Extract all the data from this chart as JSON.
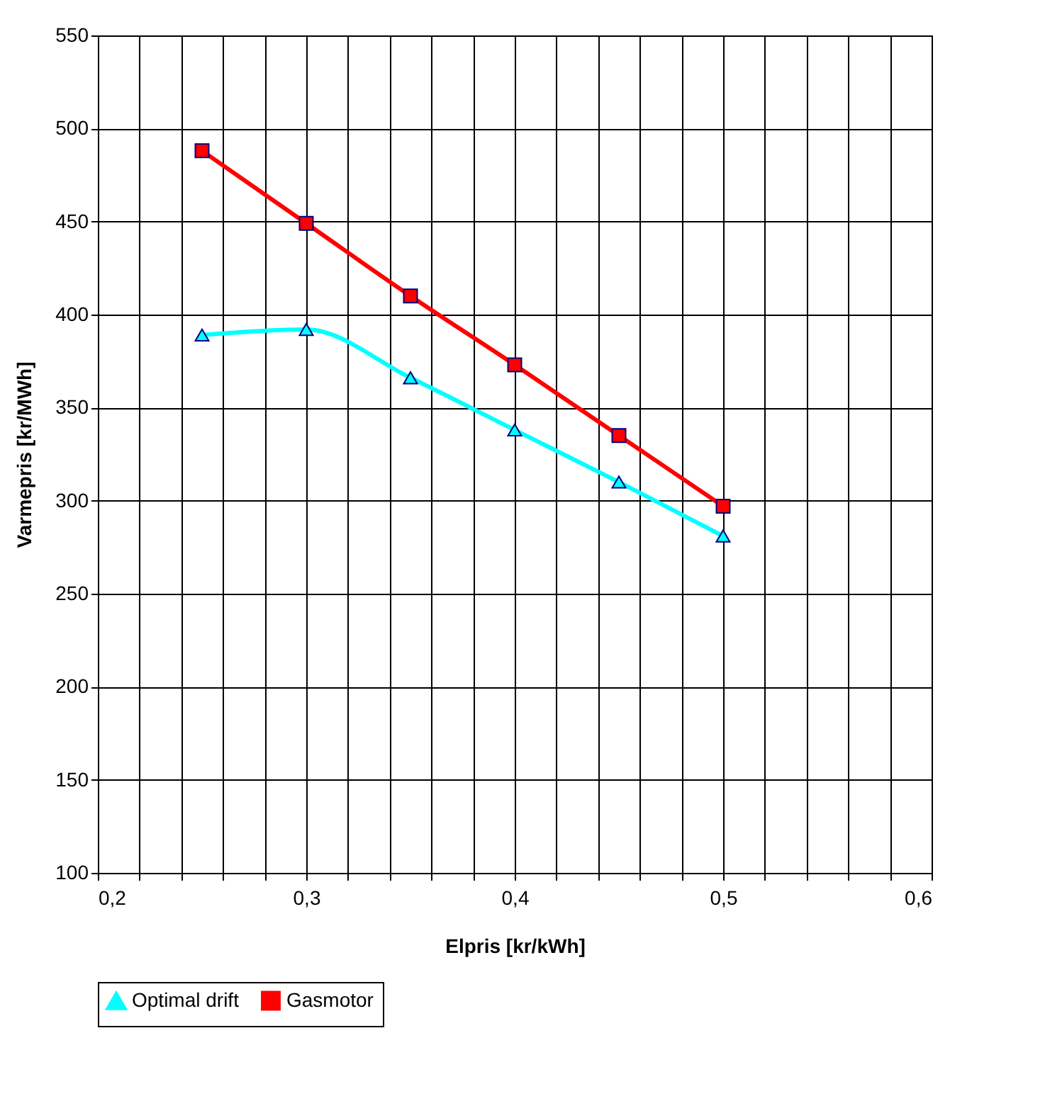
{
  "chart_data": {
    "type": "line",
    "xlabel": "Elpris [kr/kWh]",
    "ylabel": "Varmepris [kr/MWh]",
    "x": [
      0.25,
      0.3,
      0.35,
      0.4,
      0.45,
      0.5
    ],
    "series": [
      {
        "name": "Optimal drift",
        "color": "#00ffff",
        "values": [
          389,
          392,
          366,
          338,
          310,
          281
        ],
        "marker": "triangle"
      },
      {
        "name": "Gasmotor",
        "color": "#ff0000",
        "values": [
          488,
          449,
          410,
          373,
          335,
          297
        ],
        "marker": "square"
      }
    ],
    "xlim": [
      0.2,
      0.6
    ],
    "xticks": [
      {
        "value": 0.2,
        "label": "0,2"
      },
      {
        "value": 0.22,
        "label": null
      },
      {
        "value": 0.24,
        "label": null
      },
      {
        "value": 0.26,
        "label": null
      },
      {
        "value": 0.28,
        "label": null
      },
      {
        "value": 0.3,
        "label": "0,3"
      },
      {
        "value": 0.32,
        "label": null
      },
      {
        "value": 0.34,
        "label": null
      },
      {
        "value": 0.36,
        "label": null
      },
      {
        "value": 0.38,
        "label": null
      },
      {
        "value": 0.4,
        "label": "0,4"
      },
      {
        "value": 0.42,
        "label": null
      },
      {
        "value": 0.44,
        "label": null
      },
      {
        "value": 0.46,
        "label": null
      },
      {
        "value": 0.48,
        "label": null
      },
      {
        "value": 0.5,
        "label": "0,5"
      },
      {
        "value": 0.52,
        "label": null
      },
      {
        "value": 0.54,
        "label": null
      },
      {
        "value": 0.56,
        "label": null
      },
      {
        "value": 0.58,
        "label": null
      },
      {
        "value": 0.6,
        "label": "0,6"
      }
    ],
    "ylim": [
      100,
      550
    ],
    "yticks": [
      100,
      150,
      200,
      250,
      300,
      350,
      400,
      450,
      500,
      550
    ],
    "grid": true,
    "legend": "bottom",
    "line_style": "solid"
  }
}
